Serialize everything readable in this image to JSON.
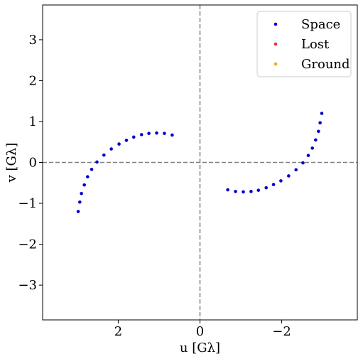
{
  "chart_data": {
    "type": "scatter",
    "xlabel": "u [Gλ]",
    "ylabel": "v [Gλ]",
    "xlim": [
      3.85,
      -3.85
    ],
    "ylim": [
      -3.85,
      3.85
    ],
    "x_inverted": true,
    "xticks": [
      2,
      0,
      -2
    ],
    "xtick_labels": [
      "2",
      "0",
      "−2"
    ],
    "yticks": [
      3,
      2,
      1,
      0,
      -1,
      -2,
      -3
    ],
    "ytick_labels": [
      "3",
      "2",
      "1",
      "0",
      "−1",
      "−2",
      "−3"
    ],
    "reference_lines": {
      "x": 0,
      "y": 0,
      "style": "dashed",
      "color": "#808080"
    },
    "grid": false,
    "legend_position": "top-right",
    "series": [
      {
        "name": "Space",
        "color": "#0000cc",
        "points": [
          {
            "x": 2.98,
            "y": -1.2
          },
          {
            "x": 2.94,
            "y": -0.97
          },
          {
            "x": 2.9,
            "y": -0.76
          },
          {
            "x": 2.83,
            "y": -0.55
          },
          {
            "x": 2.75,
            "y": -0.35
          },
          {
            "x": 2.65,
            "y": -0.17
          },
          {
            "x": 2.52,
            "y": 0.01
          },
          {
            "x": 2.35,
            "y": 0.18
          },
          {
            "x": 2.17,
            "y": 0.33
          },
          {
            "x": 1.98,
            "y": 0.45
          },
          {
            "x": 1.8,
            "y": 0.54
          },
          {
            "x": 1.62,
            "y": 0.62
          },
          {
            "x": 1.43,
            "y": 0.68
          },
          {
            "x": 1.25,
            "y": 0.71
          },
          {
            "x": 1.06,
            "y": 0.72
          },
          {
            "x": 0.87,
            "y": 0.71
          },
          {
            "x": 0.68,
            "y": 0.67
          },
          {
            "x": -2.98,
            "y": 1.2
          },
          {
            "x": -2.94,
            "y": 0.97
          },
          {
            "x": -2.9,
            "y": 0.76
          },
          {
            "x": -2.83,
            "y": 0.55
          },
          {
            "x": -2.75,
            "y": 0.35
          },
          {
            "x": -2.65,
            "y": 0.17
          },
          {
            "x": -2.52,
            "y": -0.01
          },
          {
            "x": -2.35,
            "y": -0.18
          },
          {
            "x": -2.17,
            "y": -0.33
          },
          {
            "x": -1.98,
            "y": -0.45
          },
          {
            "x": -1.8,
            "y": -0.54
          },
          {
            "x": -1.62,
            "y": -0.62
          },
          {
            "x": -1.43,
            "y": -0.68
          },
          {
            "x": -1.25,
            "y": -0.71
          },
          {
            "x": -1.06,
            "y": -0.72
          },
          {
            "x": -0.87,
            "y": -0.71
          },
          {
            "x": -0.68,
            "y": -0.67
          }
        ]
      },
      {
        "name": "Lost",
        "color": "#e8332a",
        "points": []
      },
      {
        "name": "Ground",
        "color": "#f5a031",
        "points": []
      }
    ]
  }
}
